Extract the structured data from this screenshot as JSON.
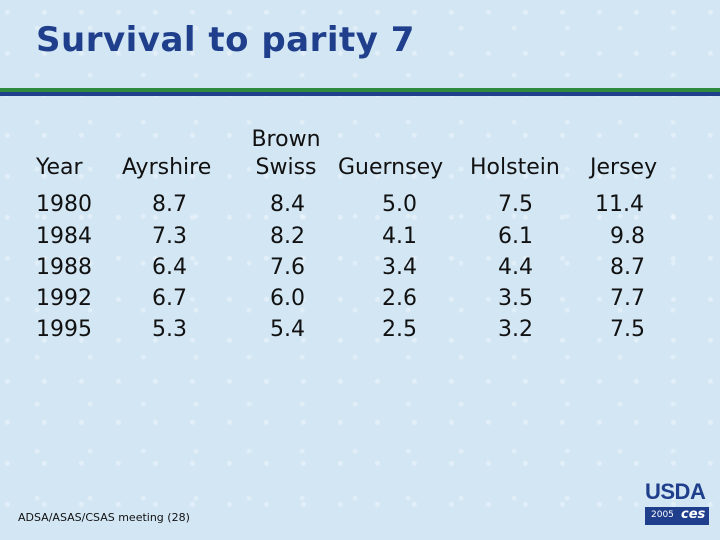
{
  "slide": {
    "title": "Survival to parity 7",
    "footer": "ADSA/ASAS/CSAS meeting (28)"
  },
  "table": {
    "year_header": "Year",
    "breeds": [
      "Ayrshire",
      "Brown Swiss",
      "Guernsey",
      "Holstein",
      "Jersey"
    ],
    "brown_swiss_line1": "Brown",
    "brown_swiss_line2": "Swiss",
    "rows": [
      {
        "year": "1980",
        "ayrshire": "8.7",
        "brown_swiss": "8.4",
        "guernsey": "5.0",
        "holstein": "7.5",
        "jersey": "11.4"
      },
      {
        "year": "1984",
        "ayrshire": "7.3",
        "brown_swiss": "8.2",
        "guernsey": "4.1",
        "holstein": "6.1",
        "jersey": "9.8"
      },
      {
        "year": "1988",
        "ayrshire": "6.4",
        "brown_swiss": "7.6",
        "guernsey": "3.4",
        "holstein": "4.4",
        "jersey": "8.7"
      },
      {
        "year": "1992",
        "ayrshire": "6.7",
        "brown_swiss": "6.0",
        "guernsey": "2.6",
        "holstein": "3.5",
        "jersey": "7.7"
      },
      {
        "year": "1995",
        "ayrshire": "5.3",
        "brown_swiss": "5.4",
        "guernsey": "2.5",
        "holstein": "3.2",
        "jersey": "7.5"
      }
    ]
  },
  "logo": {
    "name": "USDA",
    "year": "2005",
    "agency": "ces"
  },
  "colors": {
    "title": "#1f3f8c",
    "rule_green": "#2e8b3e",
    "rule_blue": "#1f3f8c"
  }
}
